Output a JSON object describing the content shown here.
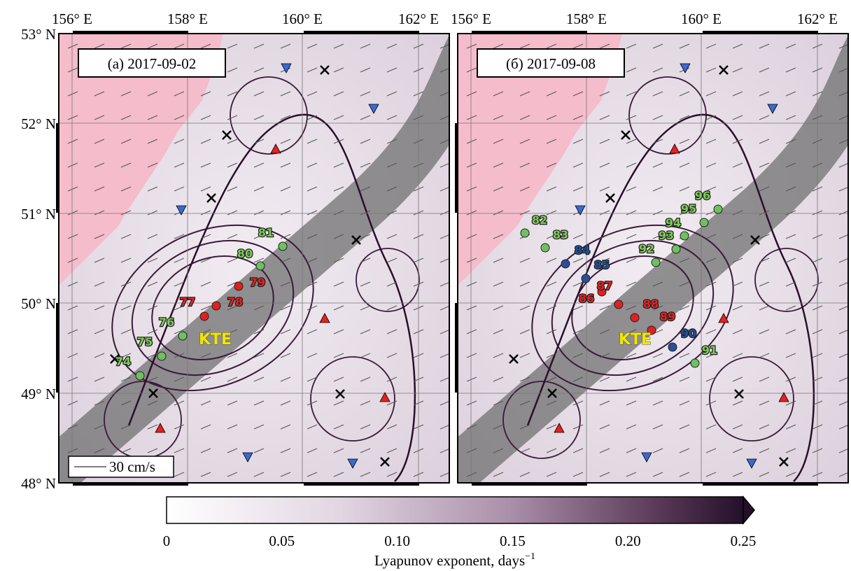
{
  "panels": [
    {
      "label": "(a) 2017-09-02",
      "stations": [
        "74",
        "75",
        "76",
        "77",
        "78",
        "79",
        "80",
        "81"
      ],
      "eddy_label": "KTE",
      "scale_label": "30 cm/s"
    },
    {
      "label": "(б) 2017-09-08",
      "stations": [
        "82",
        "83",
        "84",
        "85",
        "86",
        "87",
        "88",
        "89",
        "90",
        "91",
        "92",
        "93",
        "94",
        "95",
        "96"
      ],
      "eddy_label": "KTE"
    }
  ],
  "axes": {
    "x_labels": [
      "156° E",
      "158° E",
      "160° E",
      "162° E"
    ],
    "y_labels": [
      "53° N",
      "52° N",
      "51° N",
      "50° N",
      "49° N",
      "48° N"
    ]
  },
  "colorbar": {
    "ticks": [
      "0",
      "0.05",
      "0.10",
      "0.15",
      "0.20",
      "0.25"
    ],
    "label": "Lyapunov exponent, days",
    "label_sup": "−1"
  }
}
